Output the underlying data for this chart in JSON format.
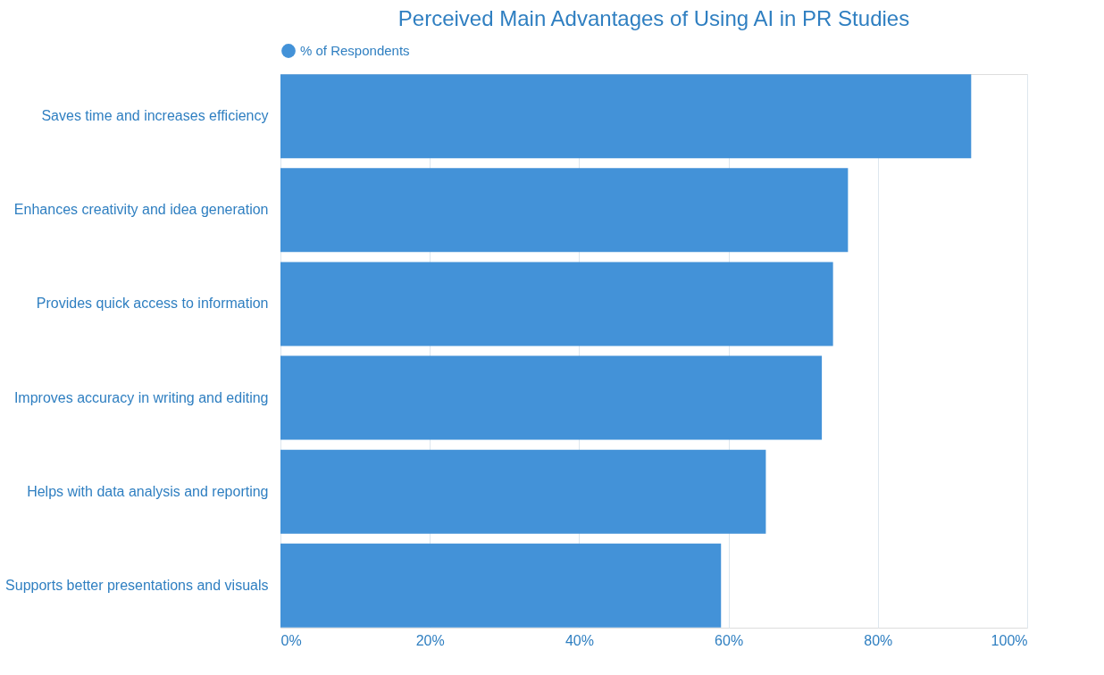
{
  "chart_data": {
    "type": "bar",
    "orientation": "horizontal",
    "title": "Perceived Main Advantages of Using AI in PR Studies",
    "categories": [
      "Saves time and increases efficiency",
      "Enhances creativity and idea generation",
      "Provides quick access to information",
      "Improves accuracy in writing and editing",
      "Helps with data analysis and reporting",
      "Supports better presentations and visuals"
    ],
    "series": [
      {
        "name": "% of Respondents",
        "color": "#4392d8",
        "values": [
          92.5,
          76,
          74,
          72.5,
          65,
          59
        ]
      }
    ],
    "xlim": [
      0,
      100
    ],
    "xticks": [
      {
        "value": 0,
        "label": "0%"
      },
      {
        "value": 20,
        "label": "20%"
      },
      {
        "value": 40,
        "label": "40%"
      },
      {
        "value": 60,
        "label": "60%"
      },
      {
        "value": 80,
        "label": "80%"
      },
      {
        "value": 100,
        "label": "100%"
      }
    ],
    "grid": "x",
    "legend": "top"
  }
}
